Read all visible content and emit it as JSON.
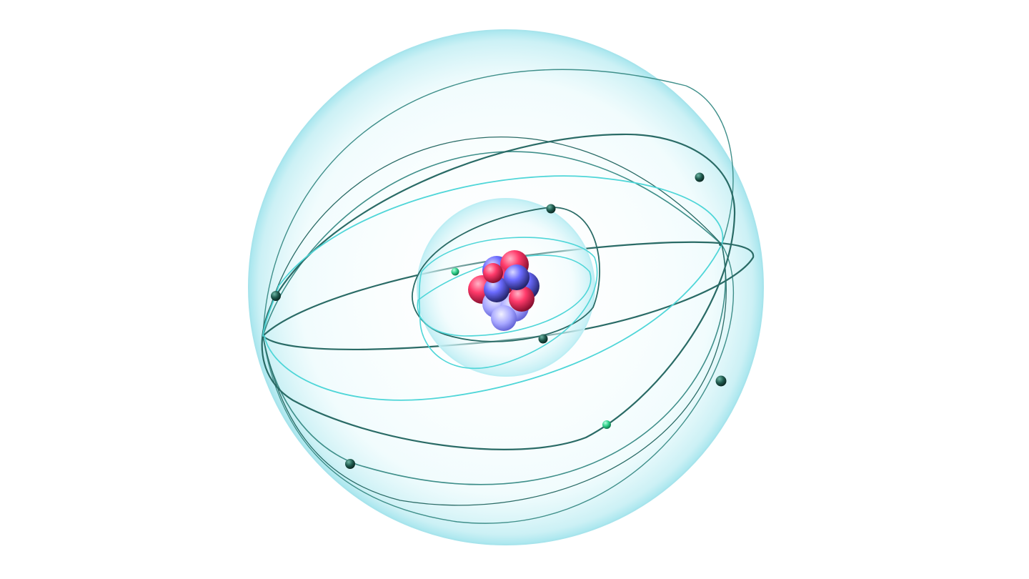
{
  "scene": {
    "subject": "atom-model",
    "colors": {
      "background": "#ffffff",
      "outer_shell": "#bfeef3",
      "inner_shell": "#c8f1f5",
      "orbit_dark": "#2a6b66",
      "orbit_mid": "#3f8f8a",
      "orbit_light": "#4fd6d8",
      "electron_dark": "#1f5a4e",
      "electron_light": "#2fcf8a",
      "proton": "#ff3a6a",
      "neutron": "#6b6bff"
    },
    "counts": {
      "inner_shell_electrons": 3,
      "outer_shell_electrons": 6,
      "nucleus_particles": 12
    }
  }
}
